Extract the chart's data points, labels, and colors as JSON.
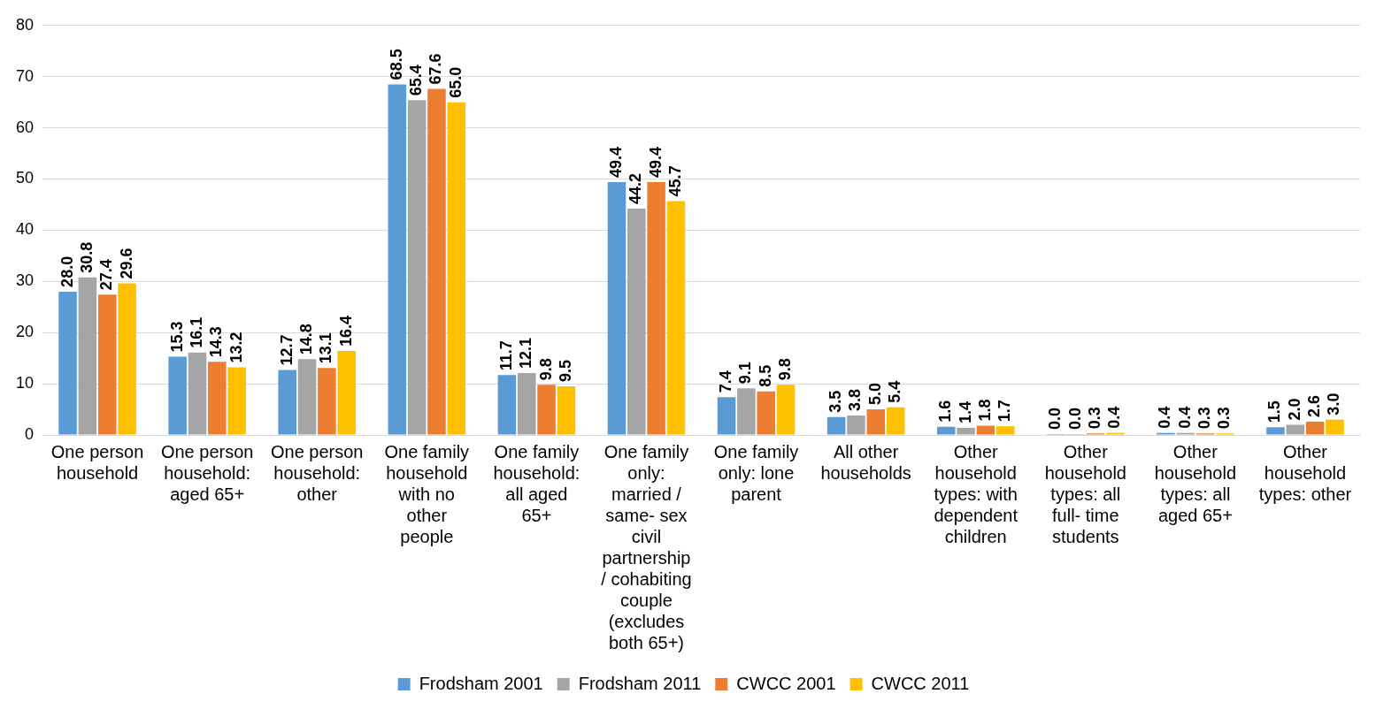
{
  "chart_data": {
    "type": "bar",
    "categories": [
      "One person household",
      "One person household: aged 65+",
      "One person household: other",
      "One family household with no other people",
      "One family household: all aged 65+",
      "One family only: married / same- sex civil partnership / cohabiting couple (excludes both 65+)",
      "One family only: lone parent",
      "All other households",
      "Other household types: with dependent children",
      "Other household types: all full- time students",
      "Other household types: all aged 65+",
      "Other household types: other"
    ],
    "series": [
      {
        "name": "Frodsham 2001",
        "color": "#5b9bd5",
        "values": [
          28.0,
          15.3,
          12.7,
          68.5,
          11.7,
          49.4,
          7.4,
          3.5,
          1.6,
          0.0,
          0.4,
          1.5
        ],
        "value_labels": [
          "28.0",
          "15.3",
          "12.7",
          "68.5",
          "11.7",
          "49.4",
          "7.4",
          "3.5",
          "1.6",
          "0.0",
          "0.4",
          "1.5"
        ]
      },
      {
        "name": "Frodsham 2011",
        "color": "#a5a5a5",
        "values": [
          30.8,
          16.1,
          14.8,
          65.4,
          12.1,
          44.2,
          9.1,
          3.8,
          1.4,
          0.0,
          0.4,
          2.0
        ],
        "value_labels": [
          "30.8",
          "16.1",
          "14.8",
          "65.4",
          "12.1",
          "44.2",
          "9.1",
          "3.8",
          "1.4",
          "0.0",
          "0.4",
          "2.0"
        ]
      },
      {
        "name": "CWCC 2001",
        "color": "#ed7d31",
        "values": [
          27.4,
          14.3,
          13.1,
          67.6,
          9.8,
          49.4,
          8.5,
          5.0,
          1.8,
          0.3,
          0.3,
          2.6
        ],
        "value_labels": [
          "27.4",
          "14.3",
          "13.1",
          "67.6",
          "9.8",
          "49.4",
          "8.5",
          "5.0",
          "1.8",
          "0.3",
          "0.3",
          "2.6"
        ]
      },
      {
        "name": "CWCC 2011",
        "color": "#ffc000",
        "values": [
          29.6,
          13.2,
          16.4,
          65.0,
          9.5,
          45.7,
          9.8,
          5.4,
          1.7,
          0.4,
          0.3,
          3.0
        ],
        "value_labels": [
          "29.6",
          "13.2",
          "16.4",
          "65.0",
          "9.5",
          "45.7",
          "9.8",
          "5.4",
          "1.7",
          "0.4",
          "0.3",
          "3.0"
        ]
      }
    ],
    "ylim": [
      0,
      80
    ],
    "yticks": [
      0,
      10,
      20,
      30,
      40,
      50,
      60,
      70,
      80
    ],
    "grid": "y",
    "legend": "bottom"
  }
}
